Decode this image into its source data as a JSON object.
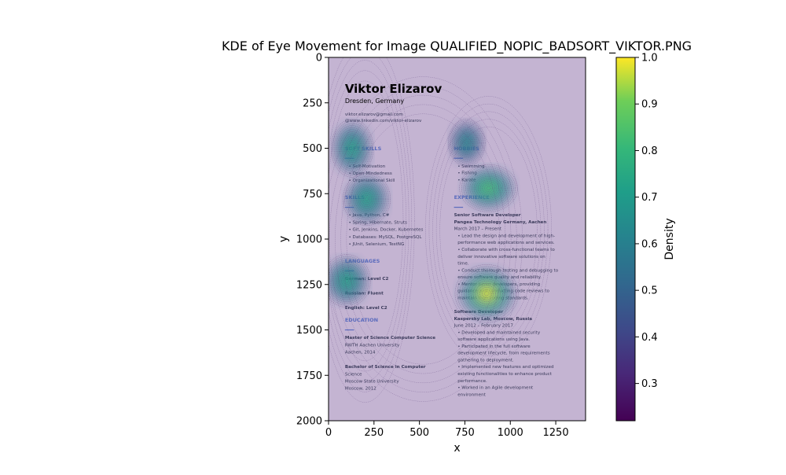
{
  "chart_data": {
    "type": "heatmap",
    "title": "KDE of Eye Movement for Image QUALIFIED_NOPIC_BADSORT_VIKTOR.PNG",
    "xlabel": "x",
    "ylabel": "y",
    "xlim": [
      0,
      1414
    ],
    "ylim": [
      2000,
      0
    ],
    "x_ticks": [
      0,
      250,
      500,
      750,
      1000,
      1250
    ],
    "y_ticks": [
      0,
      250,
      500,
      750,
      1000,
      1250,
      1500,
      1750,
      2000
    ],
    "colorbar": {
      "label": "Density",
      "colormap": "viridis",
      "range": [
        0.22,
        1.0
      ],
      "ticks": [
        0.3,
        0.4,
        0.5,
        0.6,
        0.7,
        0.8,
        0.9,
        1.0
      ]
    },
    "hotspots": [
      {
        "x": 130,
        "y": 500,
        "sx": 80,
        "sy": 110,
        "w": 0.55
      },
      {
        "x": 210,
        "y": 780,
        "sx": 90,
        "sy": 100,
        "w": 0.6
      },
      {
        "x": 100,
        "y": 1230,
        "sx": 90,
        "sy": 100,
        "w": 0.55
      },
      {
        "x": 760,
        "y": 470,
        "sx": 70,
        "sy": 90,
        "w": 0.45
      },
      {
        "x": 880,
        "y": 720,
        "sx": 110,
        "sy": 90,
        "w": 0.75
      },
      {
        "x": 870,
        "y": 1300,
        "sx": 120,
        "sy": 110,
        "w": 1.0
      }
    ],
    "background_image": {
      "name": "Viktor Elizarov",
      "location": "Dresden, Germany",
      "contact": [
        "viktor.elizarov@gmail.com",
        "@www.linkedin.com/viktor-elizarov"
      ],
      "left_sections": [
        {
          "heading": "SOFT SKILLS",
          "y": 510,
          "lines": [
            "•  Self-Motivation",
            "•  Open-Mindedness",
            "•  Organizational Skill"
          ]
        },
        {
          "heading": "SKILLS",
          "y": 780,
          "lines": [
            "•  Java, Python, C#",
            "•  Spring, Hibernate, Struts",
            "•  Git, Jenkins, Docker, Kubernetes",
            "•  Databases: MySQL, PostgreSQL",
            "•  JUnit, Selenium, TestNG"
          ]
        },
        {
          "heading": "LANGUAGES",
          "y": 1130,
          "lines": [
            "German: Level C2",
            "",
            "Russian: Fluent",
            "",
            "English: Level C2"
          ]
        },
        {
          "heading": "EDUCATION",
          "y": 1455,
          "lines": [
            "Master of Science Computer Science",
            "RWTH Aachen University",
            "Aachen, 2014",
            "",
            "Bachelor of Science in Computer",
            "Science",
            "Moscow State University",
            "Moscow, 2012"
          ]
        }
      ],
      "right_sections": [
        {
          "heading": "HOBBIES",
          "y": 510,
          "lines": [
            "•  Swimming",
            "•  Fishing",
            "•  Karate"
          ]
        },
        {
          "heading": "EXPERIENCE",
          "y": 780,
          "lines": [
            "Senior Software Developer",
            "Pangea Technology Germany, Aachen",
            "March 2017 – Present",
            "•  Lead the design and development of high-",
            "   performance web applications and services.",
            "•  Collaborate with cross-functional teams to",
            "   deliver innovative software solutions on",
            "   time.",
            "•  Conduct thorough testing and debugging to",
            "   ensure software quality and reliability.",
            "•  Mentor junior developers, providing",
            "   guidance and conducting code reviews to",
            "   maintain high coding standards.",
            "",
            "Software Developer",
            "Kaspersky Lab, Moscow, Russia",
            "June 2012 – February 2017",
            "•  Developed and maintained security",
            "   software applications using Java.",
            "•  Participated in the full software",
            "   development lifecycle, from requirements",
            "   gathering to deployment.",
            "•  Implemented new features and optimized",
            "   existing functionalities to enhance product",
            "   performance.",
            "•  Worked in an Agile development",
            "   environment"
          ]
        }
      ]
    }
  }
}
